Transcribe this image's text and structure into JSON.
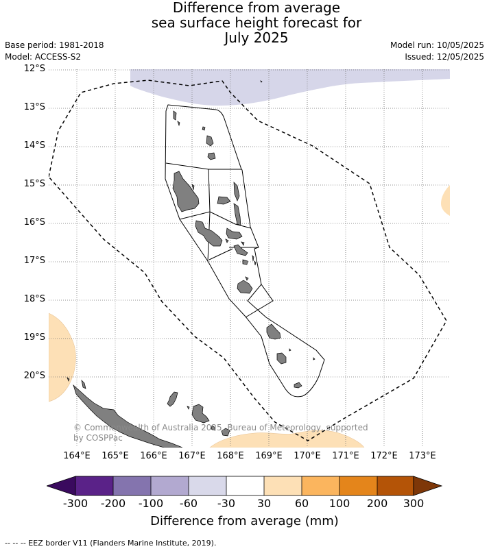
{
  "title": {
    "line1": "Difference from average",
    "line2": "sea surface height forecast for",
    "line3": "July 2025"
  },
  "meta": {
    "base_period": "Base period: 1981-2018",
    "model": "Model: ACCESS-S2",
    "model_run": "Model run: 10/05/2025",
    "issued": "Issued: 12/05/2025"
  },
  "map": {
    "lat_labels": [
      "12°S",
      "13°S",
      "14°S",
      "15°S",
      "16°S",
      "17°S",
      "18°S",
      "19°S",
      "20°S"
    ],
    "lon_labels": [
      "164°E",
      "165°E",
      "166°E",
      "167°E",
      "168°E",
      "169°E",
      "170°E",
      "171°E",
      "172°E",
      "173°E"
    ],
    "copyright": "© Commonwealth of Australia 2025, Bureau of Meteorology, supported by COSPPac",
    "land_color": "#808080",
    "eez_style": "dashed"
  },
  "colorbar": {
    "ticks": [
      "-300",
      "-200",
      "-100",
      "-60",
      "-30",
      "30",
      "60",
      "100",
      "200",
      "300"
    ],
    "colors": [
      "#3a0a5e",
      "#5a2288",
      "#8474ae",
      "#b2a9d0",
      "#d9d9ea",
      "#ffffff",
      "#fde0b6",
      "#fbb55e",
      "#e4851b",
      "#b45407",
      "#7e3708"
    ],
    "label": "Difference from average (mm)"
  },
  "footnote": "--  --  -- EEZ border V11 (Flanders Marine Institute, 2019)."
}
